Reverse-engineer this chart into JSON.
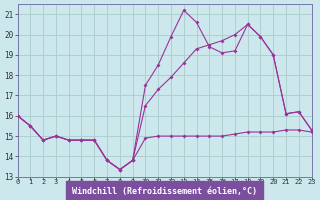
{
  "xlabel": "Windchill (Refroidissement éolien,°C)",
  "bg_color": "#cce8ec",
  "plot_bg_color": "#cce8ec",
  "xlabel_bg": "#7b4f9e",
  "xlabel_color": "#ffffff",
  "grid_color": "#aacccc",
  "line_color": "#993399",
  "spine_color": "#7777aa",
  "xlim": [
    0,
    23
  ],
  "ylim": [
    13,
    21.5
  ],
  "xticks": [
    0,
    1,
    2,
    3,
    4,
    5,
    6,
    7,
    8,
    9,
    10,
    11,
    12,
    13,
    14,
    15,
    16,
    17,
    18,
    19,
    20,
    21,
    22,
    23
  ],
  "yticks": [
    13,
    14,
    15,
    16,
    17,
    18,
    19,
    20,
    21
  ],
  "series1_x": [
    0,
    1,
    2,
    3,
    4,
    5,
    6,
    7,
    8,
    9,
    10,
    11,
    12,
    13,
    14,
    15,
    16,
    17,
    18,
    19,
    20,
    21,
    22,
    23
  ],
  "series1_y": [
    16.0,
    15.5,
    14.8,
    15.0,
    14.8,
    14.8,
    14.8,
    13.8,
    13.35,
    13.8,
    14.9,
    15.0,
    15.0,
    15.0,
    15.0,
    15.0,
    15.0,
    15.1,
    15.2,
    15.2,
    15.2,
    15.3,
    15.3,
    15.2
  ],
  "series2_x": [
    0,
    1,
    2,
    3,
    4,
    5,
    6,
    7,
    8,
    9,
    10,
    11,
    12,
    13,
    14,
    15,
    16,
    17,
    18,
    19,
    20,
    21,
    22,
    23
  ],
  "series2_y": [
    16.0,
    15.5,
    14.8,
    15.0,
    14.8,
    14.8,
    14.8,
    13.8,
    13.35,
    13.8,
    17.5,
    18.5,
    19.9,
    21.2,
    20.6,
    19.4,
    19.1,
    19.2,
    20.5,
    19.9,
    19.0,
    16.1,
    16.2,
    15.3
  ],
  "series3_x": [
    0,
    1,
    2,
    3,
    4,
    5,
    6,
    7,
    8,
    9,
    10,
    11,
    12,
    13,
    14,
    15,
    16,
    17,
    18,
    19,
    20,
    21,
    22,
    23
  ],
  "series3_y": [
    16.0,
    15.5,
    14.8,
    15.0,
    14.8,
    14.8,
    14.8,
    13.8,
    13.35,
    13.8,
    16.5,
    17.3,
    17.9,
    18.6,
    19.3,
    19.5,
    19.7,
    20.0,
    20.5,
    19.9,
    19.0,
    16.1,
    16.2,
    15.3
  ]
}
